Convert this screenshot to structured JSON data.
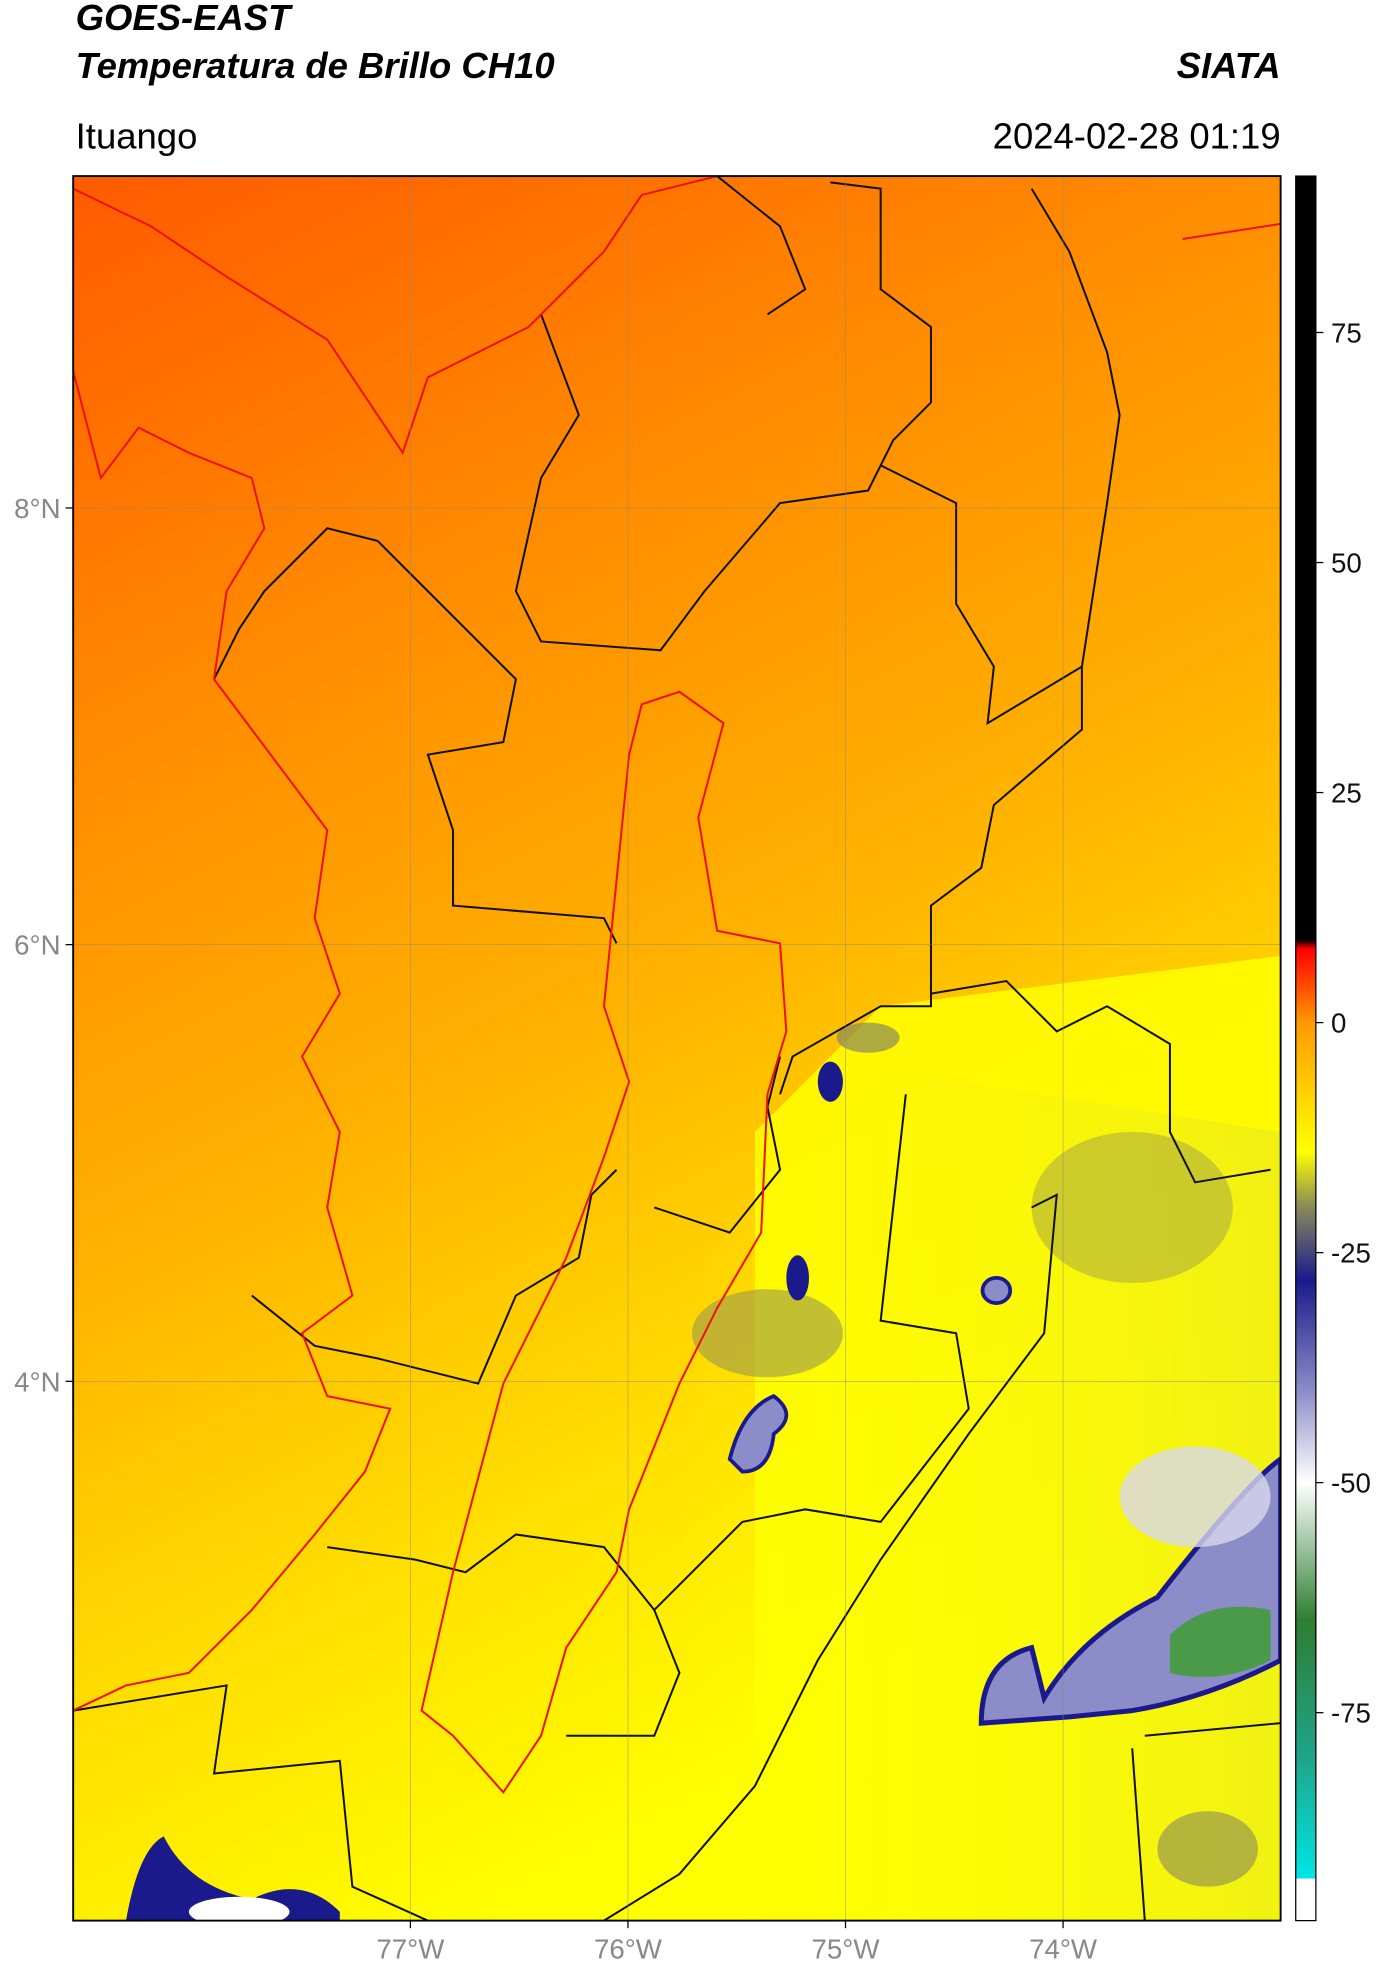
{
  "chart_data": {
    "type": "map",
    "title": "GOES-EAST",
    "subtitle": "Temperatura de Brillo CH10",
    "source": "SIATA",
    "location": "Ituango",
    "datetime": "2024-02-28 01:19",
    "xlim": [
      -78.55,
      -73.0
    ],
    "ylim": [
      1.53,
      9.52
    ],
    "xticks": [
      {
        "value": -77,
        "label": "77°W"
      },
      {
        "value": -76,
        "label": "76°W"
      },
      {
        "value": -75,
        "label": "75°W"
      },
      {
        "value": -74,
        "label": "74°W"
      }
    ],
    "yticks": [
      {
        "value": 8,
        "label": "8°N"
      },
      {
        "value": 6,
        "label": "6°N"
      },
      {
        "value": 4,
        "label": "4°N"
      }
    ],
    "grid": true,
    "colorbar": {
      "lim": [
        -97.6,
        92
      ],
      "ticks": [
        75,
        50,
        25,
        0,
        -25,
        -50,
        -75
      ],
      "colorscale": [
        {
          "value": -97.6,
          "color": "#ffffff"
        },
        {
          "value": -93,
          "color": "#ffffff"
        },
        {
          "value": -93,
          "color": "#00e5e5"
        },
        {
          "value": -80,
          "color": "#1fa58a"
        },
        {
          "value": -65,
          "color": "#2e7d32"
        },
        {
          "value": -50,
          "color": "#ffffff"
        },
        {
          "value": -40,
          "color": "#8c8cc8"
        },
        {
          "value": -28,
          "color": "#1a1a8c"
        },
        {
          "value": -20,
          "color": "#8a8a5a"
        },
        {
          "value": -14,
          "color": "#ffff00"
        },
        {
          "value": 0,
          "color": "#ff9900"
        },
        {
          "value": 8,
          "color": "#ff0000"
        },
        {
          "value": 9,
          "color": "#000000"
        },
        {
          "value": 92,
          "color": "#000000"
        }
      ]
    }
  }
}
